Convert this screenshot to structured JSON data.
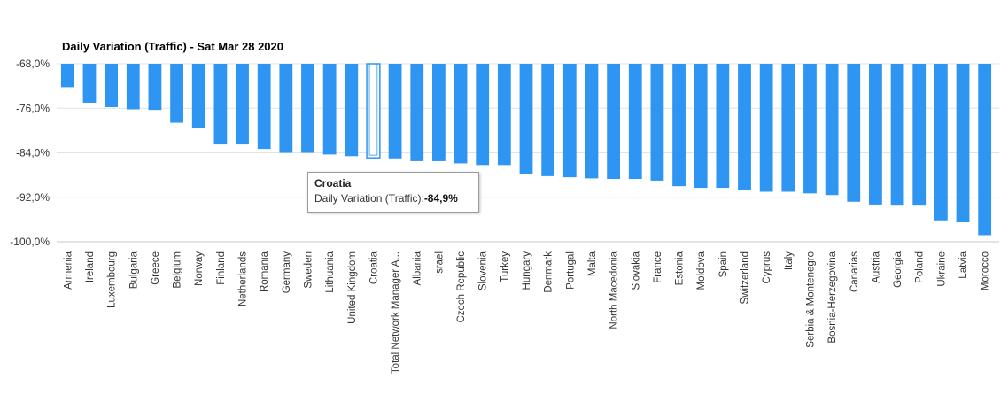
{
  "chart_data": {
    "type": "bar",
    "title": "Daily Variation (Traffic) - Sat Mar 28 2020",
    "xlabel": "",
    "ylabel": "",
    "ylim": [
      -100,
      -68
    ],
    "yticks": [
      -68,
      -76,
      -84,
      -92,
      -100
    ],
    "ytick_labels": [
      "-68,0%",
      "-76,0%",
      "-84,0%",
      "-92,0%",
      "-100,0%"
    ],
    "grid": true,
    "bar_color": "#2e95f2",
    "highlight_fill": "#ffffff",
    "categories": [
      "Armenia",
      "Ireland",
      "Luxembourg",
      "Bulgaria",
      "Greece",
      "Belgium",
      "Norway",
      "Finland",
      "Netherlands",
      "Romania",
      "Germany",
      "Sweden",
      "Lithuania",
      "United Kingdom",
      "Croatia",
      "Total Network Manager A...",
      "Albania",
      "Israel",
      "Czech Republic",
      "Slovenia",
      "Turkey",
      "Hungary",
      "Denmark",
      "Portugal",
      "Malta",
      "North Macedonia",
      "Slovakia",
      "France",
      "Estonia",
      "Moldova",
      "Spain",
      "Switzerland",
      "Cyprus",
      "Italy",
      "Serbia & Montenegro",
      "Bosnia-Herzegovina",
      "Canarias",
      "Austria",
      "Georgia",
      "Poland",
      "Ukraine",
      "Latvia",
      "Morocco"
    ],
    "values": [
      -72.2,
      -75.0,
      -75.8,
      -76.2,
      -76.3,
      -78.6,
      -79.5,
      -82.5,
      -82.5,
      -83.3,
      -84.0,
      -84.0,
      -84.3,
      -84.6,
      -84.9,
      -85.0,
      -85.5,
      -85.5,
      -85.9,
      -86.2,
      -86.2,
      -87.9,
      -88.2,
      -88.4,
      -88.6,
      -88.7,
      -88.7,
      -89.0,
      -90.0,
      -90.3,
      -90.3,
      -90.7,
      -91.0,
      -91.0,
      -91.3,
      -91.6,
      -92.8,
      -93.3,
      -93.5,
      -93.5,
      -96.3,
      -96.5,
      -98.8
    ],
    "highlight_index": 14
  },
  "tooltip": {
    "title": "Croatia",
    "label": "Daily Variation (Traffic):",
    "value": "-84,9%"
  }
}
